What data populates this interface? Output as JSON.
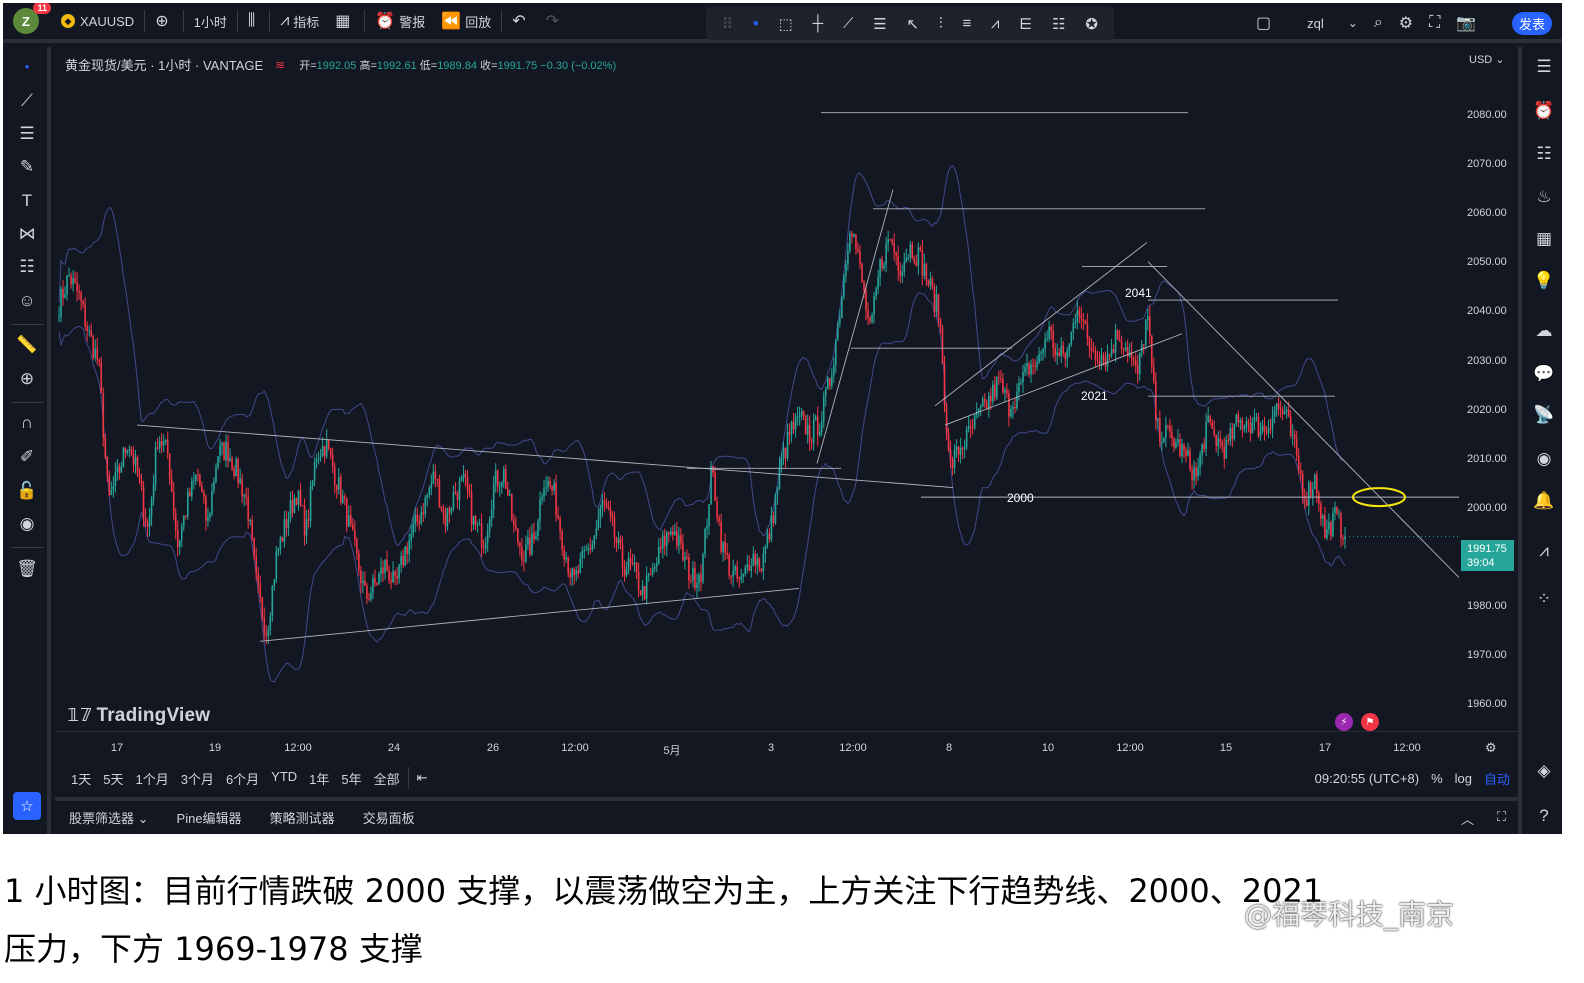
{
  "topbar": {
    "avatar_letter": "Z",
    "notification_count": "11",
    "symbol": "XAUUSD",
    "interval": "1小时",
    "indicators_label": "指标",
    "alert_label": "警报",
    "replay_label": "回放",
    "layout_name": "zql",
    "publish_label": "发表"
  },
  "legend": {
    "title": "黄金现货/美元 · 1小时 · VANTAGE",
    "open_label": "开=",
    "open": "1992.05",
    "high_label": "高=",
    "high": "1992.61",
    "low_label": "低=",
    "low": "1989.84",
    "close_label": "收=",
    "close": "1991.75",
    "change": "−0.30 (−0.02%)"
  },
  "price_axis": {
    "currency": "USD",
    "ticks": [
      "2080.00",
      "2070.00",
      "2060.00",
      "2050.00",
      "2040.00",
      "2030.00",
      "2020.00",
      "2010.00",
      "2000.00",
      "1990.00",
      "1980.00",
      "1970.00",
      "1960.00"
    ],
    "current_price": "1991.75",
    "countdown": "39:04"
  },
  "time_axis": {
    "ticks": [
      "17",
      "19",
      "12:00",
      "24",
      "26",
      "12:00",
      "5月",
      "3",
      "12:00",
      "8",
      "10",
      "12:00",
      "15",
      "17",
      "12:00"
    ]
  },
  "chart_annotations": {
    "label_2041": "2041",
    "label_2021": "2021",
    "label_2000": "2000"
  },
  "brand": "TradingView",
  "range_bar": {
    "ranges": [
      "1天",
      "5天",
      "1个月",
      "3个月",
      "6个月",
      "YTD",
      "1年",
      "5年",
      "全部"
    ],
    "clock": "09:20:55 (UTC+8)",
    "percent": "%",
    "log": "log",
    "auto": "自动"
  },
  "bottom_tabs": [
    "股票筛选器",
    "Pine编辑器",
    "策略测试器",
    "交易面板"
  ],
  "caption": {
    "line1": "1 小时图：目前行情跌破 2000 支撑，以震荡做空为主，上方关注下行趋势线、2000、2021",
    "line2": "压力，下方 1969-1978 支撑"
  },
  "watermark": "@福琴科技_南京",
  "colors": {
    "background": "#131722",
    "up": "#26a69a",
    "down": "#f23645",
    "accent": "#2962ff",
    "bollinger": "#3f4a8a",
    "trendline": "#b2b5be",
    "highlight": "#f5e50c"
  },
  "chart_data": {
    "type": "candlestick",
    "ylim": [
      1953,
      2092
    ],
    "current_price": 1991.75,
    "levels": [
      2080,
      2060,
      2048,
      2041,
      2031,
      2021,
      2000
    ],
    "trend_start": 2049,
    "path": [
      2040,
      2046,
      2042,
      2034,
      2028,
      1999,
      2005,
      2012,
      2004,
      1993,
      2013,
      2009,
      1990,
      1999,
      2005,
      1994,
      2009,
      2010,
      2005,
      1999,
      1981,
      1972,
      1988,
      1995,
      2001,
      1993,
      2009,
      2011,
      2004,
      1997,
      1988,
      1979,
      1982,
      1986,
      1981,
      1989,
      1994,
      1999,
      2005,
      1995,
      2001,
      2003,
      1994,
      1991,
      2003,
      2005,
      1993,
      1988,
      1991,
      2004,
      2001,
      1990,
      1982,
      1987,
      1991,
      1999,
      1993,
      1986,
      1985,
      1980,
      1984,
      1990,
      1994,
      1988,
      1983,
      1985,
      2006,
      1990,
      1984,
      1982,
      1988,
      1986,
      1994,
      2007,
      2014,
      2016,
      2013,
      2016,
      2025,
      2040,
      2058,
      2047,
      2034,
      2048,
      2054,
      2048,
      2052,
      2050,
      2044,
      2038,
      2006,
      2010,
      2013,
      2017,
      2020,
      2024,
      2019,
      2022,
      2027,
      2028,
      2035,
      2029,
      2030,
      2041,
      2032,
      2030,
      2029,
      2034,
      2031,
      2025,
      2038,
      2014,
      2013,
      2011,
      2008,
      2004,
      2015,
      2012,
      2010,
      2015,
      2016,
      2015,
      2014,
      2019,
      2017,
      2009,
      2000,
      2004,
      1992,
      1996,
      1992
    ]
  }
}
